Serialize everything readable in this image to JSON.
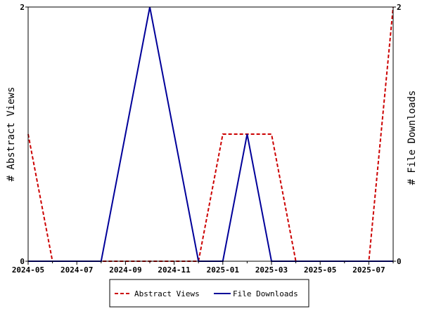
{
  "chart_data": {
    "type": "line",
    "x": [
      "2024-05",
      "2024-06",
      "2024-07",
      "2024-08",
      "2024-09",
      "2024-10",
      "2024-11",
      "2024-12",
      "2025-01",
      "2025-02",
      "2025-03",
      "2025-04",
      "2025-05",
      "2025-06",
      "2025-07",
      "2025-08"
    ],
    "x_tick_labels": [
      "2024-05",
      "2024-07",
      "2024-09",
      "2024-11",
      "2025-01",
      "2025-03",
      "2025-05",
      "2025-07"
    ],
    "series": [
      {
        "name": "Abstract Views",
        "axis": "left",
        "color": "#cc0000",
        "dash": "dashed",
        "values": [
          1,
          0,
          0,
          0,
          0,
          0,
          0,
          0,
          1,
          1,
          1,
          0,
          0,
          0,
          0,
          2
        ]
      },
      {
        "name": "File Downloads",
        "axis": "right",
        "color": "#000099",
        "dash": "solid",
        "values": [
          0,
          0,
          0,
          0,
          1,
          2,
          1,
          0,
          0,
          1,
          0,
          0,
          0,
          0,
          0,
          0
        ]
      }
    ],
    "ylabel_left": "# Abstract Views",
    "ylabel_right": "# File Downloads",
    "ylim_left": [
      0,
      2
    ],
    "ylim_right": [
      0,
      2
    ],
    "y_ticks_left": [
      "0",
      "2"
    ],
    "y_ticks_right": [
      "0",
      "2"
    ],
    "grid": false,
    "legend_position": "bottom-center"
  }
}
